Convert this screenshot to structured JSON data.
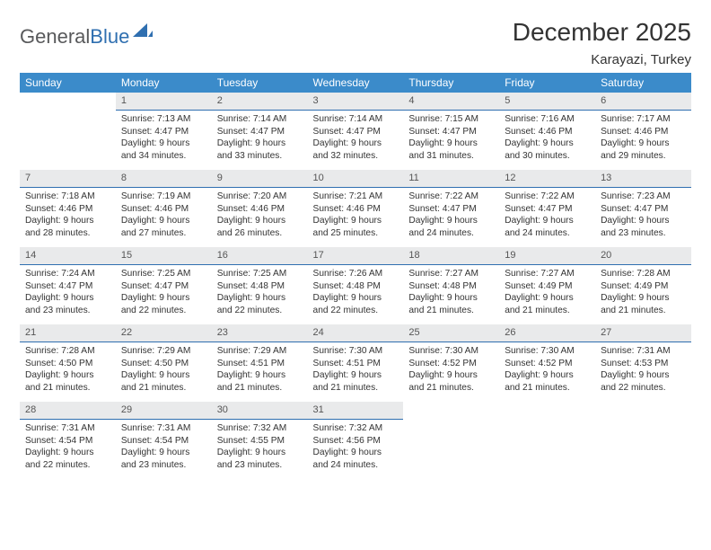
{
  "brand": {
    "part1": "General",
    "part2": "Blue"
  },
  "title": "December 2025",
  "location": "Karayazi, Turkey",
  "colors": {
    "header_bg": "#3b8bca",
    "header_text": "#ffffff",
    "daynum_bg": "#e9eaeb",
    "daynum_border": "#2f6fb0",
    "body_text": "#333333",
    "logo_gray": "#58595b",
    "logo_blue": "#2f6fb0"
  },
  "day_headers": [
    "Sunday",
    "Monday",
    "Tuesday",
    "Wednesday",
    "Thursday",
    "Friday",
    "Saturday"
  ],
  "weeks": [
    [
      null,
      {
        "n": "1",
        "sr": "7:13 AM",
        "ss": "4:47 PM",
        "dl": "9 hours and 34 minutes."
      },
      {
        "n": "2",
        "sr": "7:14 AM",
        "ss": "4:47 PM",
        "dl": "9 hours and 33 minutes."
      },
      {
        "n": "3",
        "sr": "7:14 AM",
        "ss": "4:47 PM",
        "dl": "9 hours and 32 minutes."
      },
      {
        "n": "4",
        "sr": "7:15 AM",
        "ss": "4:47 PM",
        "dl": "9 hours and 31 minutes."
      },
      {
        "n": "5",
        "sr": "7:16 AM",
        "ss": "4:46 PM",
        "dl": "9 hours and 30 minutes."
      },
      {
        "n": "6",
        "sr": "7:17 AM",
        "ss": "4:46 PM",
        "dl": "9 hours and 29 minutes."
      }
    ],
    [
      {
        "n": "7",
        "sr": "7:18 AM",
        "ss": "4:46 PM",
        "dl": "9 hours and 28 minutes."
      },
      {
        "n": "8",
        "sr": "7:19 AM",
        "ss": "4:46 PM",
        "dl": "9 hours and 27 minutes."
      },
      {
        "n": "9",
        "sr": "7:20 AM",
        "ss": "4:46 PM",
        "dl": "9 hours and 26 minutes."
      },
      {
        "n": "10",
        "sr": "7:21 AM",
        "ss": "4:46 PM",
        "dl": "9 hours and 25 minutes."
      },
      {
        "n": "11",
        "sr": "7:22 AM",
        "ss": "4:47 PM",
        "dl": "9 hours and 24 minutes."
      },
      {
        "n": "12",
        "sr": "7:22 AM",
        "ss": "4:47 PM",
        "dl": "9 hours and 24 minutes."
      },
      {
        "n": "13",
        "sr": "7:23 AM",
        "ss": "4:47 PM",
        "dl": "9 hours and 23 minutes."
      }
    ],
    [
      {
        "n": "14",
        "sr": "7:24 AM",
        "ss": "4:47 PM",
        "dl": "9 hours and 23 minutes."
      },
      {
        "n": "15",
        "sr": "7:25 AM",
        "ss": "4:47 PM",
        "dl": "9 hours and 22 minutes."
      },
      {
        "n": "16",
        "sr": "7:25 AM",
        "ss": "4:48 PM",
        "dl": "9 hours and 22 minutes."
      },
      {
        "n": "17",
        "sr": "7:26 AM",
        "ss": "4:48 PM",
        "dl": "9 hours and 22 minutes."
      },
      {
        "n": "18",
        "sr": "7:27 AM",
        "ss": "4:48 PM",
        "dl": "9 hours and 21 minutes."
      },
      {
        "n": "19",
        "sr": "7:27 AM",
        "ss": "4:49 PM",
        "dl": "9 hours and 21 minutes."
      },
      {
        "n": "20",
        "sr": "7:28 AM",
        "ss": "4:49 PM",
        "dl": "9 hours and 21 minutes."
      }
    ],
    [
      {
        "n": "21",
        "sr": "7:28 AM",
        "ss": "4:50 PM",
        "dl": "9 hours and 21 minutes."
      },
      {
        "n": "22",
        "sr": "7:29 AM",
        "ss": "4:50 PM",
        "dl": "9 hours and 21 minutes."
      },
      {
        "n": "23",
        "sr": "7:29 AM",
        "ss": "4:51 PM",
        "dl": "9 hours and 21 minutes."
      },
      {
        "n": "24",
        "sr": "7:30 AM",
        "ss": "4:51 PM",
        "dl": "9 hours and 21 minutes."
      },
      {
        "n": "25",
        "sr": "7:30 AM",
        "ss": "4:52 PM",
        "dl": "9 hours and 21 minutes."
      },
      {
        "n": "26",
        "sr": "7:30 AM",
        "ss": "4:52 PM",
        "dl": "9 hours and 21 minutes."
      },
      {
        "n": "27",
        "sr": "7:31 AM",
        "ss": "4:53 PM",
        "dl": "9 hours and 22 minutes."
      }
    ],
    [
      {
        "n": "28",
        "sr": "7:31 AM",
        "ss": "4:54 PM",
        "dl": "9 hours and 22 minutes."
      },
      {
        "n": "29",
        "sr": "7:31 AM",
        "ss": "4:54 PM",
        "dl": "9 hours and 23 minutes."
      },
      {
        "n": "30",
        "sr": "7:32 AM",
        "ss": "4:55 PM",
        "dl": "9 hours and 23 minutes."
      },
      {
        "n": "31",
        "sr": "7:32 AM",
        "ss": "4:56 PM",
        "dl": "9 hours and 24 minutes."
      },
      null,
      null,
      null
    ]
  ],
  "labels": {
    "sunrise": "Sunrise: ",
    "sunset": "Sunset: ",
    "daylight": "Daylight: "
  }
}
